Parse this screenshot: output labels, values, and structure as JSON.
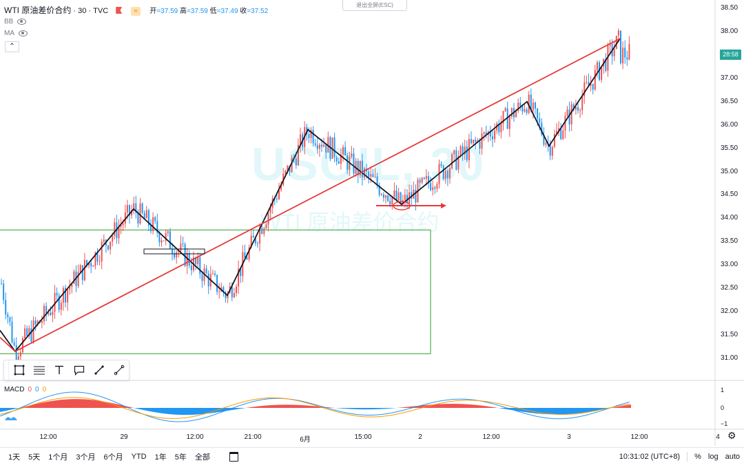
{
  "header": {
    "symbol": "WTI 原油差价合约",
    "separator": " · ",
    "interval": "30",
    "source": "TVC",
    "ohlc": {
      "open_label": "开",
      "open": "=37.59",
      "high_label": "高",
      "high": "=37.59",
      "low_label": "低",
      "low": "=37.49",
      "close_label": "收",
      "close": "=37.52"
    },
    "colors": {
      "up": "#ef5350",
      "down": "#2196f3"
    }
  },
  "indicators": [
    {
      "name": "BB",
      "icon": "eye-icon"
    },
    {
      "name": "MA",
      "icon": "eye-icon"
    }
  ],
  "collapse_icon": "chevron-up-icon",
  "exit_fullscreen_label": "退出全屏(ESC)",
  "watermark": {
    "line1": "USOIL, 30",
    "line2": "WTI 原油差价合约"
  },
  "price_axis": {
    "labels": [
      "38.50",
      "38.00",
      "37.50",
      "37.00",
      "36.50",
      "36.00",
      "35.50",
      "35.00",
      "34.50",
      "34.00",
      "33.50",
      "33.00",
      "32.50",
      "32.00",
      "31.50",
      "31.00"
    ],
    "countdown": "28:58",
    "countdown_color": "#26a69a"
  },
  "macd": {
    "label": "MACD",
    "values": [
      "0",
      "0",
      "0"
    ],
    "value_colors": [
      "#ef5350",
      "#2196f3",
      "#ff9800"
    ],
    "axis_labels": [
      "1",
      "0",
      "−1"
    ]
  },
  "time_axis": {
    "labels": [
      "12:00",
      "29",
      "12:00",
      "21:00",
      "6月",
      "15:00",
      "2",
      "12:00",
      "3",
      "12:00",
      "4"
    ]
  },
  "drawing_toolbar": {
    "tools": [
      "rectangle-icon",
      "fib-icon",
      "text-icon",
      "callout-icon",
      "brush-icon",
      "trendline-icon"
    ]
  },
  "bottom_bar": {
    "ranges": [
      "1天",
      "5天",
      "1个月",
      "3个月",
      "6个月",
      "YTD",
      "1年",
      "5年",
      "全部"
    ],
    "goto_icon": "calendar-goto-icon",
    "clock": "10:31:02 (UTC+8)",
    "percent_label": "%",
    "log_label": "log",
    "auto_label": "auto",
    "settings_icon": "gear-icon"
  },
  "chart_data": {
    "type": "candlestick",
    "series": [
      {
        "name": "WTI 原油差价合约",
        "color_up": "#ef5350",
        "color_down": "#2196f3"
      }
    ],
    "ylim": [
      30.75,
      38.65
    ],
    "zigzag_pivots": [
      31.15,
      34.2,
      32.35,
      35.9,
      34.3,
      36.5,
      35.55,
      37.85
    ],
    "trendline": {
      "from_price": 31.15,
      "to_price": 37.85,
      "color": "#e53935"
    },
    "range_box": {
      "top_price": 33.75,
      "bottom_price": 31.1,
      "color": "#4caf50"
    },
    "last_price": 37.52,
    "grid": false
  }
}
